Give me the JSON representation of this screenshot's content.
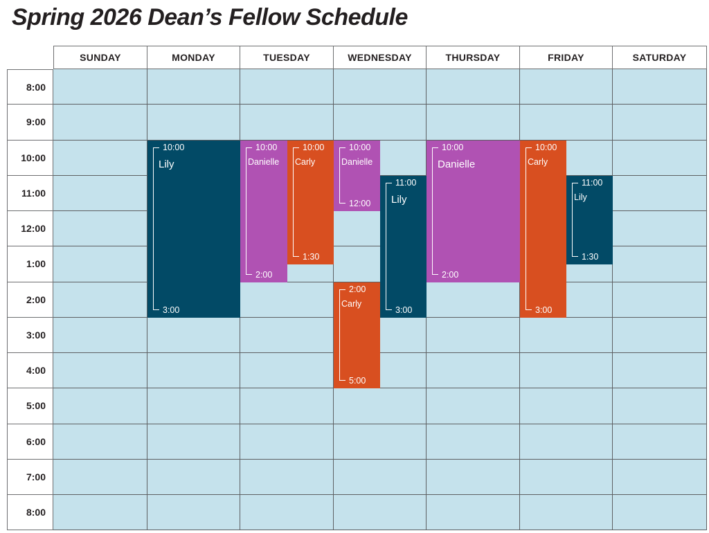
{
  "title": "Spring 2026 Dean’s Fellow Schedule",
  "days": [
    "SUNDAY",
    "MONDAY",
    "TUESDAY",
    "WEDNESDAY",
    "THURSDAY",
    "FRIDAY",
    "SATURDAY"
  ],
  "times": [
    "8:00",
    "9:00",
    "10:00",
    "11:00",
    "12:00",
    "1:00",
    "2:00",
    "3:00",
    "4:00",
    "5:00",
    "6:00",
    "7:00",
    "8:00"
  ],
  "colors": {
    "Lily": "#024a66",
    "Danielle": "#b052b3",
    "Carly": "#d84f20",
    "cell": "#c5e2ec"
  },
  "events": [
    {
      "day": 1,
      "lane": "full",
      "start": 10,
      "end": 15,
      "name": "Lily",
      "start_label": "10:00",
      "end_label": "3:00"
    },
    {
      "day": 2,
      "lane": "left",
      "start": 10,
      "end": 14,
      "name": "Danielle",
      "start_label": "10:00",
      "end_label": "2:00"
    },
    {
      "day": 2,
      "lane": "right",
      "start": 10,
      "end": 13.5,
      "name": "Carly",
      "start_label": "10:00",
      "end_label": "1:30"
    },
    {
      "day": 3,
      "lane": "left",
      "start": 10,
      "end": 12,
      "name": "Danielle",
      "start_label": "10:00",
      "end_label": "12:00"
    },
    {
      "day": 3,
      "lane": "right",
      "start": 11,
      "end": 15,
      "name": "Lily",
      "start_label": "11:00",
      "end_label": "3:00"
    },
    {
      "day": 3,
      "lane": "left",
      "start": 14,
      "end": 17,
      "name": "Carly",
      "start_label": "2:00",
      "end_label": "5:00"
    },
    {
      "day": 4,
      "lane": "full",
      "start": 10,
      "end": 14,
      "name": "Danielle",
      "start_label": "10:00",
      "end_label": "2:00"
    },
    {
      "day": 5,
      "lane": "left",
      "start": 10,
      "end": 15,
      "name": "Carly",
      "start_label": "10:00",
      "end_label": "3:00"
    },
    {
      "day": 5,
      "lane": "right",
      "start": 11,
      "end": 13.5,
      "name": "Lily",
      "start_label": "11:00",
      "end_label": "1:30"
    }
  ]
}
